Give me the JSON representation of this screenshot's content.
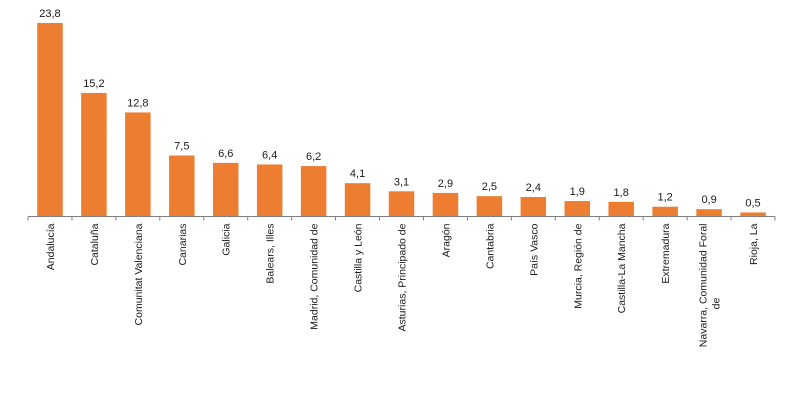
{
  "chart_data": {
    "type": "bar",
    "categories": [
      [
        "Andalucía"
      ],
      [
        "Cataluña"
      ],
      [
        "Comunitat Valenciana"
      ],
      [
        "Canarias"
      ],
      [
        "Galicia"
      ],
      [
        "Balears, Illes"
      ],
      [
        "Madrid, Comunidad de"
      ],
      [
        "Castilla y León"
      ],
      [
        "Asturias, Principado de"
      ],
      [
        "Aragón"
      ],
      [
        "Cantabria"
      ],
      [
        "País Vasco"
      ],
      [
        "Murcia, Región de"
      ],
      [
        "Castilla-La Mancha"
      ],
      [
        "Extremadura"
      ],
      [
        "Navarra, Comunidad Foral",
        "de"
      ],
      [
        "Rioja, La"
      ]
    ],
    "values": [
      23.8,
      15.2,
      12.8,
      7.5,
      6.6,
      6.4,
      6.2,
      4.1,
      3.1,
      2.9,
      2.5,
      2.4,
      1.9,
      1.8,
      1.2,
      0.9,
      0.5
    ],
    "value_labels": [
      "23,8",
      "15,2",
      "12,8",
      "7,5",
      "6,6",
      "6,4",
      "6,2",
      "4,1",
      "3,1",
      "2,9",
      "2,5",
      "2,4",
      "1,9",
      "1,8",
      "1,2",
      "0,9",
      "0,5"
    ],
    "ylim": [
      0,
      23.8
    ],
    "grid": false,
    "legend": "none",
    "bar_color": "#ED7D31",
    "axis_color": "#7f7f7f"
  }
}
